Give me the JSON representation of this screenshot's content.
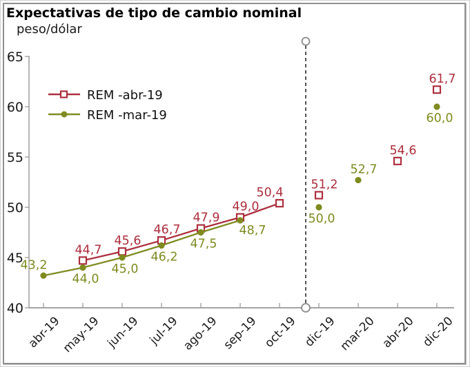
{
  "chart_data": {
    "type": "line",
    "title": "Expectativas de tipo de cambio nominal",
    "unit_label": "peso/dólar",
    "xlabel": "",
    "ylabel": "peso/dólar",
    "ylim": [
      40,
      65
    ],
    "yticks": [
      40,
      45,
      50,
      55,
      60,
      65
    ],
    "grid": false,
    "legend_position": "upper-left",
    "categories": [
      "abr-19",
      "may-19",
      "jun-19",
      "jul-19",
      "ago-19",
      "sep-19",
      "oct-19",
      "dic-19",
      "mar-20",
      "abr-20",
      "dic-20"
    ],
    "divider": {
      "between": [
        "oct-19",
        "dic-19"
      ],
      "style": "dashed-black-vertical",
      "endpoints": "open-circles"
    },
    "colors": {
      "rem_abr": "#ad2f3e",
      "rem_mar": "#7f8b1f",
      "axis": "#a3a3a3",
      "tick_text": "#1a1a1a",
      "divider": "#1a1a1a",
      "divider_circle_stroke": "#8a8a8a"
    },
    "series": [
      {
        "name": "REM -abr-19",
        "color": "#ad2f3e",
        "marker": "open-square",
        "line_end_category": "oct-19",
        "values": [
          null,
          44.7,
          45.6,
          46.7,
          47.9,
          49.0,
          50.4,
          51.2,
          null,
          54.6,
          61.7
        ],
        "labels": [
          null,
          "44,7",
          "45,6",
          "46,7",
          "47,9",
          "49,0",
          "50,4",
          "51,2",
          null,
          "54,6",
          "61,7"
        ],
        "label_positions": [
          null,
          "above",
          "above",
          "above",
          "above",
          "above",
          "above-left",
          "above",
          null,
          "above",
          "above"
        ]
      },
      {
        "name": "REM -mar-19",
        "color": "#7f8b1f",
        "marker": "filled-circle",
        "line_end_category": "sep-19",
        "values": [
          43.2,
          44.0,
          45.0,
          46.2,
          47.5,
          48.7,
          null,
          50.0,
          52.7,
          null,
          60.0
        ],
        "labels": [
          "43,2",
          "44,0",
          "45,0",
          "46,2",
          "47,5",
          "48,7",
          null,
          "50,0",
          "52,7",
          null,
          "60,0"
        ],
        "label_positions": [
          "above-left",
          "below",
          "below",
          "below",
          "below",
          "below-right",
          null,
          "below",
          "above",
          null,
          "below"
        ]
      }
    ]
  }
}
